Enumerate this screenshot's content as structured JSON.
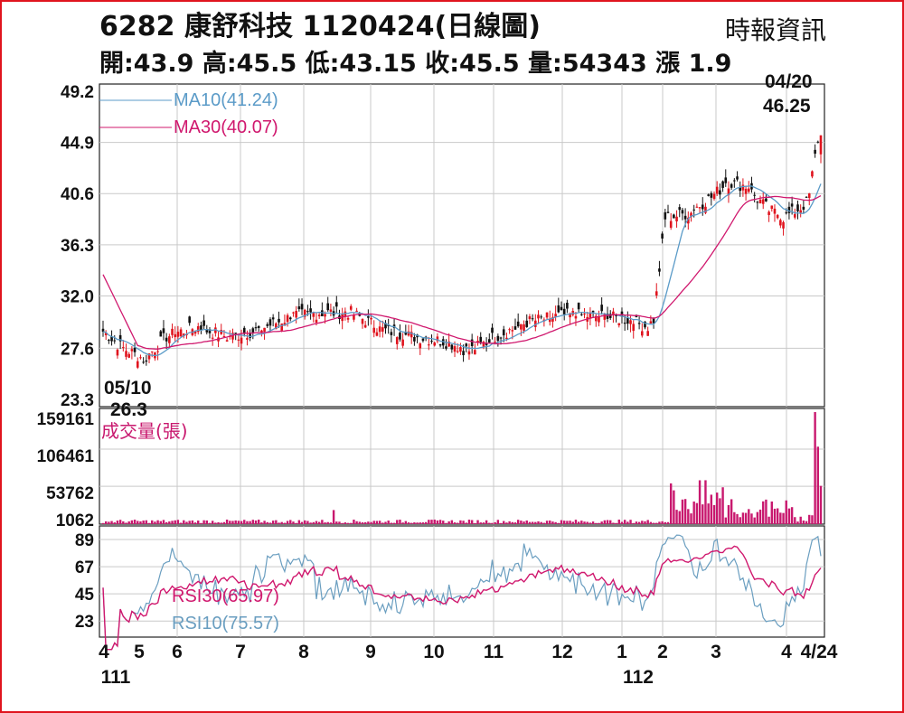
{
  "header": {
    "title": "6282  康舒科技 1120424(日線圖)",
    "source": "時報資訊",
    "stats": "開:43.9 高:45.5 低:43.15 收:45.5 量:54343 漲 1.9"
  },
  "colors": {
    "frame": "#e0141e",
    "ma10": "#5b9bc8",
    "ma30": "#d0186e",
    "rsi30": "#d0186e",
    "rsi10": "#6a9ec0",
    "volume": "#c8186e",
    "candle_up": "#e0141e",
    "candle_down": "#111111",
    "grid": "#c9c9c9"
  },
  "chart_data": [
    {
      "type": "candlestick",
      "panel": "price",
      "ylim": [
        23.3,
        49.2
      ],
      "yticks": [
        "49.2",
        "44.9",
        "40.6",
        "36.3",
        "32.0",
        "27.6",
        "23.3"
      ],
      "yticks_values": [
        49.2,
        44.9,
        40.6,
        36.3,
        32.0,
        27.6,
        23.3
      ],
      "legend": [
        {
          "label": "MA10(41.24)",
          "color": "#5b9bc8"
        },
        {
          "label": "MA30(40.07)",
          "color": "#d0186e"
        }
      ],
      "annotations": {
        "low_date": "05/10",
        "low_value": "26.3",
        "high_date": "04/20",
        "high_value": "46.25"
      },
      "last_close": 45.5
    },
    {
      "type": "bar",
      "panel": "volume",
      "legend": "成交量(張)",
      "yticks": [
        "159161",
        "106461",
        "53762",
        "1062"
      ],
      "yticks_values": [
        159161,
        106461,
        53762,
        1062
      ],
      "last_value": 54343
    },
    {
      "type": "line",
      "panel": "rsi",
      "ylim": [
        10,
        100
      ],
      "yticks": [
        "89",
        "67",
        "45",
        "23"
      ],
      "yticks_values": [
        89,
        67,
        45,
        23
      ],
      "series": [
        {
          "name": "RSI30(65.97)",
          "color": "#d0186e",
          "last": 65.97
        },
        {
          "name": "RSI10(75.57)",
          "color": "#6a9ec0",
          "last": 75.57
        }
      ]
    }
  ],
  "xaxis": {
    "labels": [
      "4",
      "5",
      "6",
      "7",
      "8",
      "9",
      "10",
      "11",
      "12",
      "1",
      "2",
      "3",
      "4",
      "4/24"
    ],
    "years": [
      "111",
      "112"
    ]
  }
}
